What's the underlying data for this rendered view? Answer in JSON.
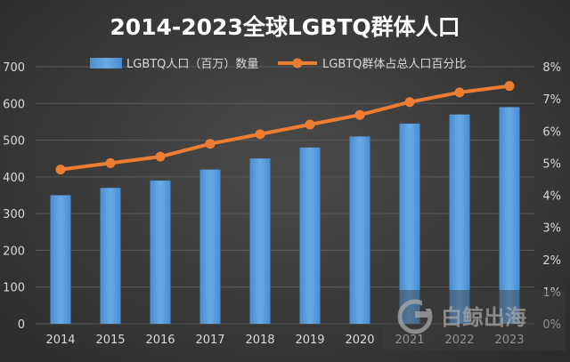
{
  "chart_data": {
    "type": "bar",
    "title": "2014-2023全球LGBTQ群体人口",
    "categories": [
      "2014",
      "2015",
      "2016",
      "2017",
      "2018",
      "2019",
      "2020",
      "2021",
      "2022",
      "2023"
    ],
    "series": [
      {
        "name": "LGBTQ人口（百万）数量",
        "kind": "bar",
        "axis": "left",
        "values": [
          350,
          370,
          390,
          420,
          450,
          480,
          510,
          545,
          570,
          590
        ]
      },
      {
        "name": "LGBTQ群体占总人口百分比",
        "kind": "line",
        "axis": "right",
        "values": [
          4.8,
          5.0,
          5.2,
          5.6,
          5.9,
          6.2,
          6.5,
          6.9,
          7.2,
          7.4
        ]
      }
    ],
    "y_left": {
      "range": [
        0,
        700
      ],
      "ticks": [
        "0",
        "100",
        "200",
        "300",
        "400",
        "500",
        "600",
        "700"
      ]
    },
    "y_right": {
      "range": [
        0,
        8
      ],
      "ticks": [
        "0%",
        "1%",
        "2%",
        "3%",
        "4%",
        "5%",
        "6%",
        "7%",
        "8%"
      ]
    },
    "legend_position": "top",
    "grid": true,
    "colors": {
      "bar": "#5b9bd5",
      "line": "#ed7d31",
      "grid": "#595959",
      "text": "#d9d9d9"
    }
  },
  "watermark": {
    "text": "白鲸出海"
  }
}
